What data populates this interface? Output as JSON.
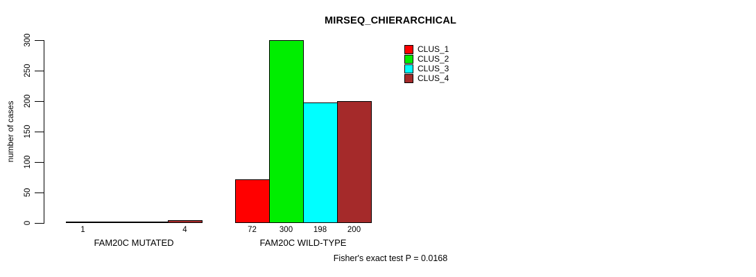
{
  "chart_data": {
    "type": "bar",
    "grouped": true,
    "title": "MIRSEQ_CHIERARCHICAL",
    "ylabel": "number of cases",
    "footer": "Fisher's exact test P = 0.0168",
    "categories": [
      "FAM20C MUTATED",
      "FAM20C WILD-TYPE"
    ],
    "series": [
      {
        "name": "CLUS_1",
        "color": "#FF0000",
        "values": [
          1,
          72
        ]
      },
      {
        "name": "CLUS_2",
        "color": "#00EE00",
        "values": [
          0,
          300
        ]
      },
      {
        "name": "CLUS_3",
        "color": "#00FFFF",
        "values": [
          0,
          198
        ]
      },
      {
        "name": "CLUS_4",
        "color": "#A52A2A",
        "values": [
          4,
          200
        ]
      }
    ],
    "bar_value_labels": [
      [
        "1",
        "",
        "",
        "4"
      ],
      [
        "72",
        "300",
        "198",
        "200"
      ]
    ],
    "ylim": [
      0,
      300
    ],
    "yticks": [
      0,
      50,
      100,
      150,
      200,
      250,
      300
    ],
    "legend_position": "top-right",
    "grid": false,
    "axis_color": "#000000",
    "background": "#FFFFFF"
  }
}
